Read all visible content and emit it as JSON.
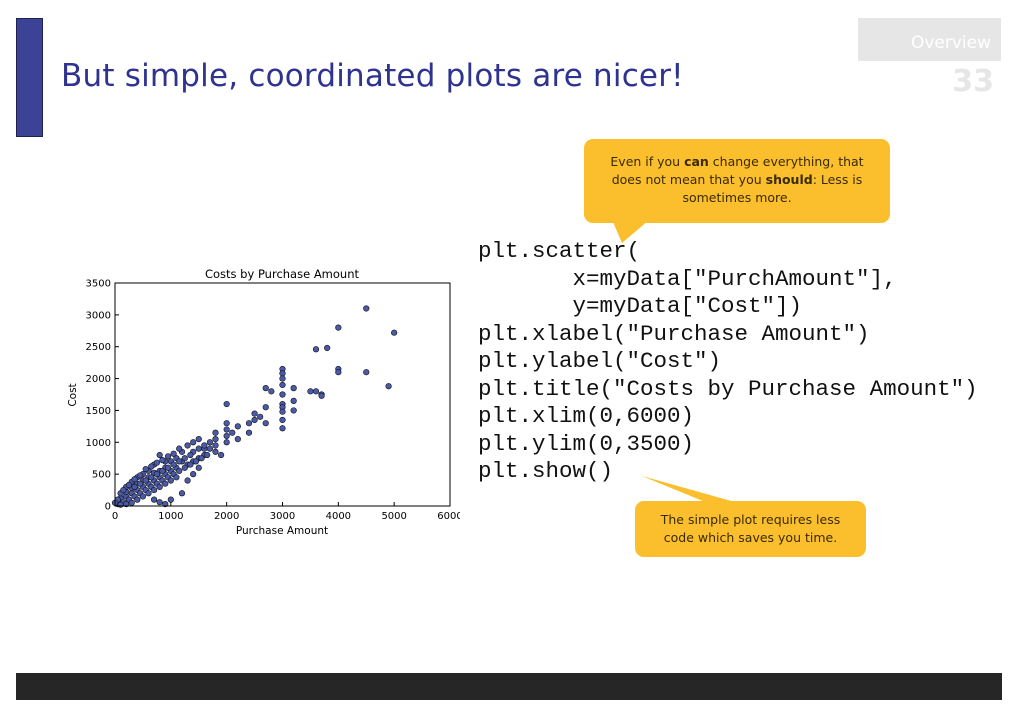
{
  "slide": {
    "title": "But simple, coordinated plots are nicer!",
    "section": "Overview",
    "page_number": "33"
  },
  "colors": {
    "accent": "#3c4396",
    "title": "#2e3390",
    "callout": "#fbbf2d",
    "footer": "#262626",
    "point_fill": "#4a5aa8"
  },
  "code_lines": [
    "plt.scatter(",
    "       x=myData[\"PurchAmount\"],",
    "       y=myData[\"Cost\"])",
    "plt.xlabel(\"Purchase Amount\")",
    "plt.ylabel(\"Cost\")",
    "plt.title(\"Costs by Purchase Amount\")",
    "plt.xlim(0,6000)",
    "plt.ylim(0,3500)",
    "plt.show()"
  ],
  "callouts": {
    "top": {
      "part1": "Even if you ",
      "em1": "can",
      "part2": " change everything, that does not mean that you ",
      "em2": "should",
      "part3": ": Less is sometimes more."
    },
    "bottom": "The simple plot requires less code which saves you time."
  },
  "chart_data": {
    "type": "scatter",
    "title": "Costs by Purchase Amount",
    "xlabel": "Purchase Amount",
    "ylabel": "Cost",
    "xlim": [
      0,
      6000
    ],
    "ylim": [
      0,
      3500
    ],
    "xticks": [
      0,
      1000,
      2000,
      3000,
      4000,
      5000,
      6000
    ],
    "yticks": [
      0,
      500,
      1000,
      1500,
      2000,
      2500,
      3000,
      3500
    ],
    "grid": false,
    "points": [
      [
        4500,
        3100
      ],
      [
        5000,
        2720
      ],
      [
        4000,
        2800
      ],
      [
        3800,
        2480
      ],
      [
        3600,
        2460
      ],
      [
        4000,
        2150
      ],
      [
        4000,
        2100
      ],
      [
        4500,
        2100
      ],
      [
        4900,
        1880
      ],
      [
        3000,
        2150
      ],
      [
        3000,
        2080
      ],
      [
        3000,
        2000
      ],
      [
        3000,
        1900
      ],
      [
        3000,
        1750
      ],
      [
        3000,
        1600
      ],
      [
        3000,
        1550
      ],
      [
        3000,
        1480
      ],
      [
        3000,
        1350
      ],
      [
        3000,
        1220
      ],
      [
        3200,
        1850
      ],
      [
        3200,
        1650
      ],
      [
        3200,
        1500
      ],
      [
        3500,
        1800
      ],
      [
        3600,
        1800
      ],
      [
        3700,
        1750
      ],
      [
        3700,
        1730
      ],
      [
        2700,
        1850
      ],
      [
        2800,
        1800
      ],
      [
        2700,
        1550
      ],
      [
        2500,
        1450
      ],
      [
        2500,
        1350
      ],
      [
        2400,
        1300
      ],
      [
        2200,
        1250
      ],
      [
        2700,
        1300
      ],
      [
        2000,
        1600
      ],
      [
        2000,
        1300
      ],
      [
        2000,
        1200
      ],
      [
        2000,
        1100
      ],
      [
        2000,
        1000
      ],
      [
        2200,
        1050
      ],
      [
        1800,
        1150
      ],
      [
        1800,
        1050
      ],
      [
        1800,
        950
      ],
      [
        1800,
        850
      ],
      [
        1700,
        1000
      ],
      [
        1700,
        900
      ],
      [
        1900,
        800
      ],
      [
        1600,
        900
      ],
      [
        1600,
        800
      ],
      [
        1500,
        900
      ],
      [
        1500,
        750
      ],
      [
        1400,
        700
      ],
      [
        1300,
        650
      ],
      [
        1200,
        700
      ],
      [
        1100,
        600
      ],
      [
        1000,
        550
      ],
      [
        1000,
        700
      ],
      [
        900,
        500
      ],
      [
        900,
        600
      ],
      [
        800,
        450
      ],
      [
        800,
        550
      ],
      [
        800,
        800
      ],
      [
        700,
        400
      ],
      [
        700,
        520
      ],
      [
        600,
        350
      ],
      [
        600,
        450
      ],
      [
        500,
        300
      ],
      [
        500,
        400
      ],
      [
        400,
        250
      ],
      [
        400,
        350
      ],
      [
        300,
        200
      ],
      [
        300,
        280
      ],
      [
        200,
        150
      ],
      [
        200,
        220
      ],
      [
        100,
        80
      ],
      [
        100,
        120
      ],
      [
        50,
        30
      ],
      [
        150,
        60
      ],
      [
        250,
        100
      ],
      [
        350,
        150
      ],
      [
        450,
        200
      ],
      [
        550,
        250
      ],
      [
        650,
        300
      ],
      [
        750,
        350
      ],
      [
        850,
        400
      ],
      [
        950,
        450
      ],
      [
        1050,
        500
      ],
      [
        1150,
        550
      ],
      [
        1250,
        600
      ],
      [
        1350,
        650
      ],
      [
        1450,
        700
      ],
      [
        1550,
        750
      ],
      [
        1650,
        800
      ],
      [
        1200,
        850
      ],
      [
        1300,
        950
      ],
      [
        1400,
        1000
      ],
      [
        1500,
        1050
      ],
      [
        1100,
        750
      ],
      [
        900,
        700
      ],
      [
        700,
        650
      ],
      [
        600,
        550
      ],
      [
        500,
        500
      ],
      [
        400,
        450
      ],
      [
        300,
        380
      ],
      [
        200,
        300
      ],
      [
        100,
        200
      ],
      [
        50,
        100
      ],
      [
        0,
        50
      ],
      [
        150,
        250
      ],
      [
        250,
        330
      ],
      [
        350,
        420
      ],
      [
        450,
        480
      ],
      [
        550,
        580
      ],
      [
        650,
        620
      ],
      [
        750,
        680
      ],
      [
        850,
        720
      ],
      [
        950,
        780
      ],
      [
        1050,
        820
      ],
      [
        1150,
        900
      ],
      [
        1600,
        950
      ],
      [
        1400,
        850
      ],
      [
        2400,
        1150
      ],
      [
        2100,
        1150
      ],
      [
        2600,
        1400
      ],
      [
        700,
        100
      ],
      [
        800,
        60
      ],
      [
        900,
        30
      ],
      [
        1000,
        100
      ],
      [
        1200,
        200
      ],
      [
        1300,
        400
      ],
      [
        1400,
        500
      ],
      [
        1500,
        600
      ],
      [
        600,
        200
      ],
      [
        500,
        150
      ],
      [
        400,
        100
      ],
      [
        300,
        50
      ],
      [
        200,
        30
      ],
      [
        100,
        20
      ],
      [
        350,
        300
      ],
      [
        450,
        350
      ],
      [
        550,
        400
      ],
      [
        650,
        450
      ],
      [
        750,
        500
      ],
      [
        850,
        550
      ],
      [
        950,
        600
      ],
      [
        1050,
        650
      ],
      [
        1150,
        700
      ],
      [
        1250,
        750
      ],
      [
        1350,
        800
      ],
      [
        1100,
        450
      ],
      [
        1000,
        400
      ],
      [
        900,
        350
      ],
      [
        800,
        300
      ],
      [
        700,
        250
      ]
    ]
  }
}
